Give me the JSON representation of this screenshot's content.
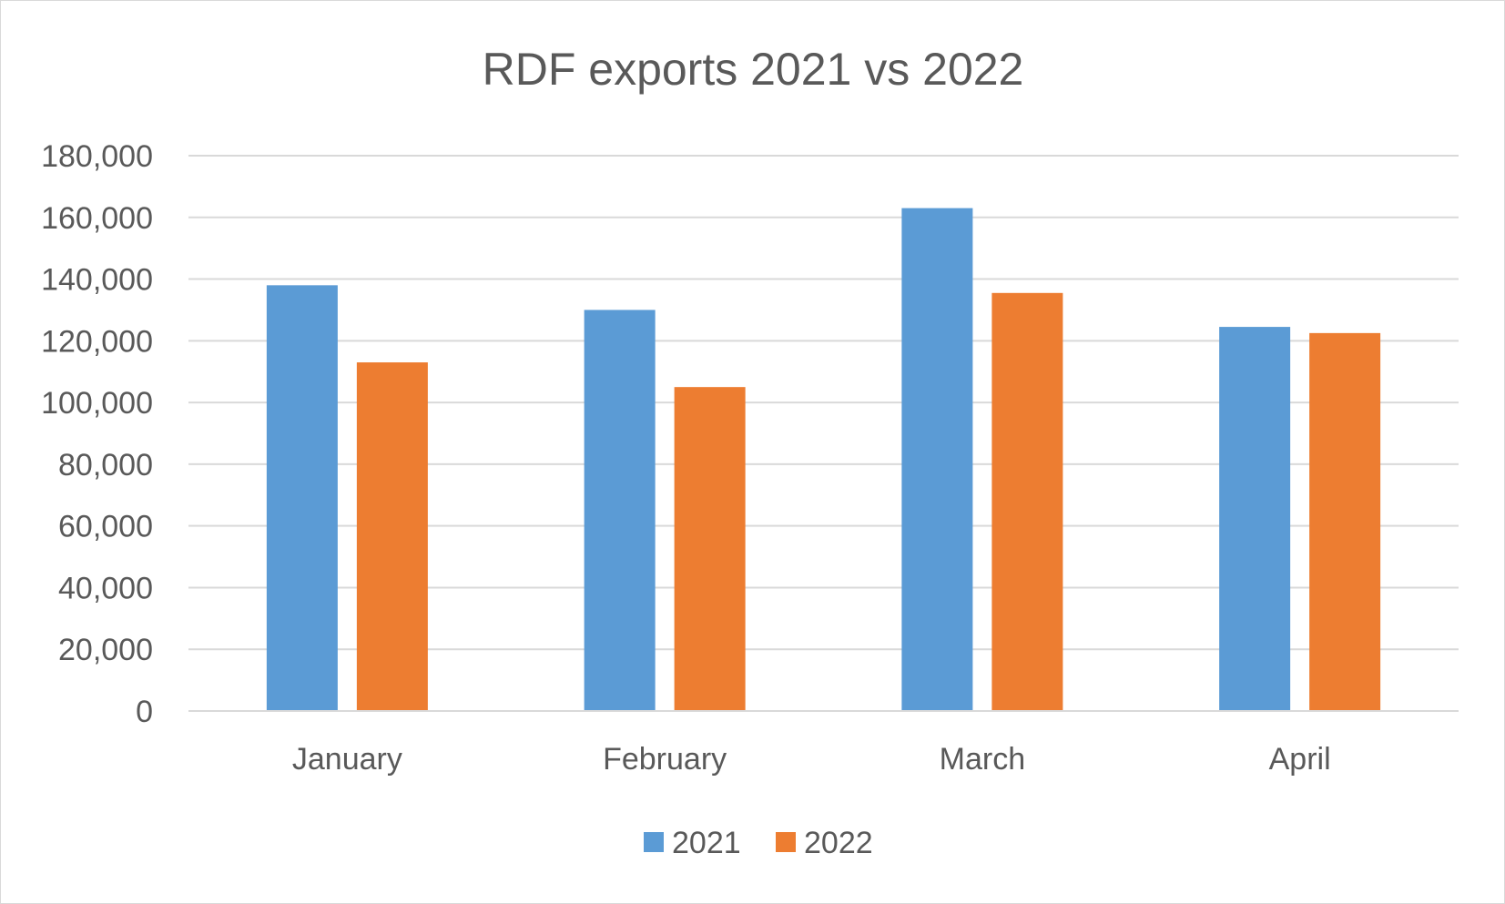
{
  "chart_data": {
    "type": "bar",
    "title": "RDF exports 2021 vs 2022",
    "xlabel": "",
    "ylabel": "",
    "categories": [
      "January",
      "February",
      "March",
      "April"
    ],
    "series": [
      {
        "name": "2021",
        "color": "#5b9bd5",
        "values": [
          138000,
          130000,
          163000,
          124500
        ]
      },
      {
        "name": "2022",
        "color": "#ed7d31",
        "values": [
          113000,
          105000,
          135500,
          122500
        ]
      }
    ],
    "ylim": [
      0,
      180000
    ],
    "yticks": [
      "0",
      "20,000",
      "40,000",
      "60,000",
      "80,000",
      "100,000",
      "120,000",
      "140,000",
      "160,000",
      "180,000"
    ],
    "ytick_values": [
      0,
      20000,
      40000,
      60000,
      80000,
      100000,
      120000,
      140000,
      160000,
      180000
    ],
    "grid": true,
    "legend_position": "bottom"
  }
}
